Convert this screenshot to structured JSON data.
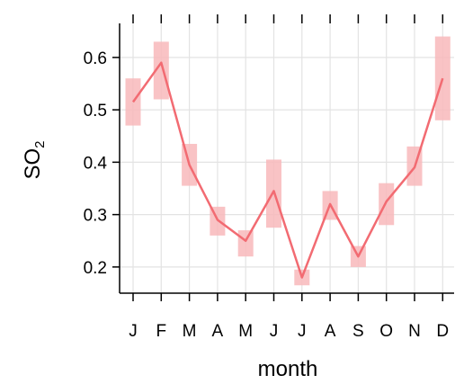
{
  "chart_data": {
    "type": "line",
    "title": "",
    "xlabel": "month",
    "ylabel": "SO",
    "ylabel_subscript": "2",
    "categories": [
      "J",
      "F",
      "M",
      "A",
      "M",
      "J",
      "J",
      "A",
      "S",
      "O",
      "N",
      "D"
    ],
    "series": [
      {
        "values": [
          0.515,
          0.59,
          0.395,
          0.29,
          0.25,
          0.345,
          0.18,
          0.32,
          0.22,
          0.325,
          0.39,
          0.56
        ],
        "lower": [
          0.47,
          0.52,
          0.355,
          0.26,
          0.22,
          0.275,
          0.165,
          0.29,
          0.2,
          0.28,
          0.355,
          0.48
        ],
        "upper": [
          0.56,
          0.63,
          0.435,
          0.315,
          0.27,
          0.405,
          0.195,
          0.345,
          0.24,
          0.36,
          0.43,
          0.64
        ]
      }
    ],
    "yticks": [
      0.2,
      0.3,
      0.4,
      0.5,
      0.6
    ],
    "ytick_labels": [
      "0.2",
      "0.3",
      "0.4",
      "0.5",
      "0.6"
    ],
    "ylim": [
      0.15,
      0.665
    ],
    "grid": true,
    "legend": "none",
    "colors": {
      "line": "#f26b72",
      "band": "#f8b8bb",
      "grid": "#e3e3e3",
      "axis": "#000000"
    }
  }
}
